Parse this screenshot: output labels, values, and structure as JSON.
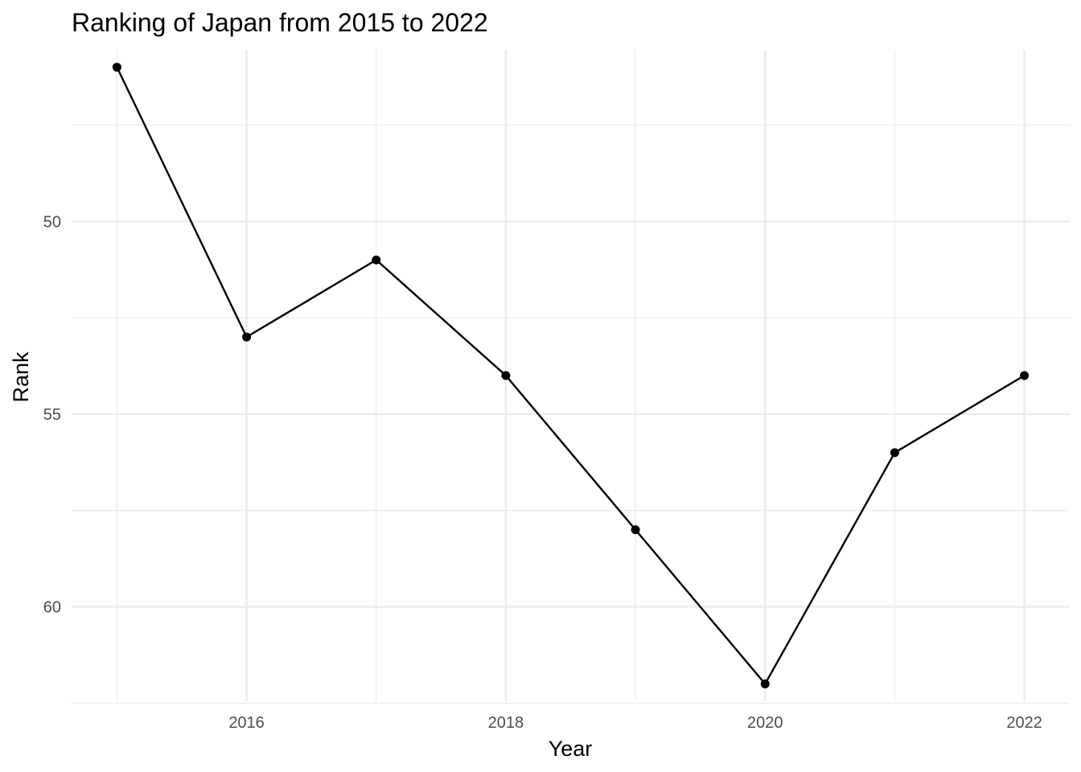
{
  "chart_data": {
    "type": "line",
    "title": "Ranking of Japan from 2015 to 2022",
    "xlabel": "Year",
    "ylabel": "Rank",
    "x": [
      2015,
      2016,
      2017,
      2018,
      2019,
      2020,
      2021,
      2022
    ],
    "y": [
      46,
      53,
      51,
      54,
      58,
      62,
      56,
      54
    ],
    "xlim": [
      2014.65,
      2022.35
    ],
    "ylim": [
      62.45,
      45.55
    ],
    "y_reversed": true,
    "x_ticks": [
      2016,
      2018,
      2020,
      2022
    ],
    "x_tick_labels": [
      "2016",
      "2018",
      "2020",
      "2022"
    ],
    "y_ticks": [
      50,
      55,
      60
    ],
    "y_tick_labels": [
      "50",
      "55",
      "60"
    ],
    "x_minor_ticks": [
      2015,
      2017,
      2019,
      2021
    ],
    "y_minor_ticks": [
      47.5,
      52.5,
      57.5,
      62.5
    ],
    "grid": true,
    "legend": "none",
    "colors": {
      "line": "#000000",
      "points": "#000000",
      "grid": "#ebebeb",
      "tick_text": "#4d4d4d"
    }
  }
}
